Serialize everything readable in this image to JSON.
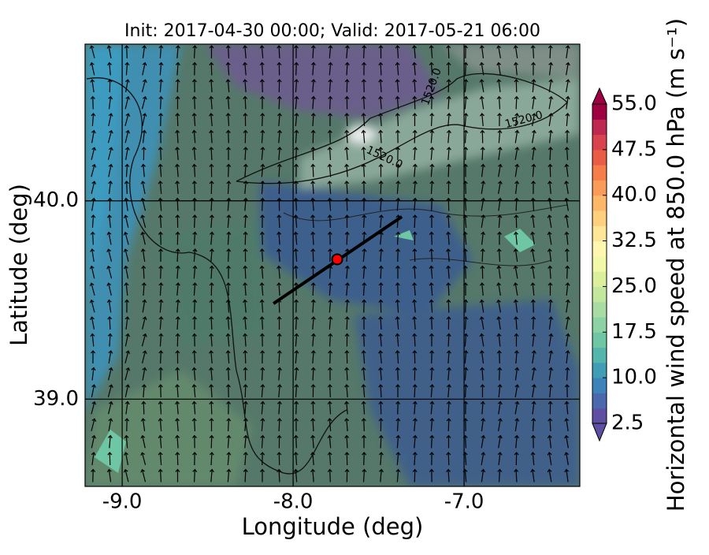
{
  "chart_data": {
    "type": "map",
    "title": "Init: 2017-04-30 00:00; Valid: 2017-05-21 06:00",
    "x_label": "Longitude (deg)",
    "y_label": "Latitude (deg)",
    "xlim": [
      -9.217,
      -6.323
    ],
    "ylim": [
      38.56,
      40.79
    ],
    "xticks": [
      {
        "value": -9,
        "label": "-9.0"
      },
      {
        "value": -8,
        "label": "-8.0"
      },
      {
        "value": -7,
        "label": "-7.0"
      }
    ],
    "yticks": [
      {
        "value": 39,
        "label": "39.0"
      },
      {
        "value": 40,
        "label": "40.0"
      }
    ],
    "grid": true,
    "contour_labels": [
      "1520.0",
      "1520.0",
      "1520.0"
    ],
    "cross_section": {
      "start": [
        -8.115,
        39.482
      ],
      "end": [
        -7.364,
        39.92
      ],
      "center": [
        -7.742,
        39.705
      ],
      "color": "#ff0000"
    },
    "colorbar": {
      "label": "Horizontal wind speed at 850.0 hPa (m s⁻¹)",
      "range": [
        2.5,
        55
      ],
      "ticks": [
        {
          "value": 2.5,
          "label": "2.5"
        },
        {
          "value": 10,
          "label": "10.0"
        },
        {
          "value": 17.5,
          "label": "17.5"
        },
        {
          "value": 25,
          "label": "25.0"
        },
        {
          "value": 32.5,
          "label": "32.5"
        },
        {
          "value": 40,
          "label": "40.0"
        },
        {
          "value": 47.5,
          "label": "47.5"
        },
        {
          "value": 55,
          "label": "55.0"
        }
      ],
      "colors": [
        "#5e4fa2",
        "#4a68ad",
        "#3b83b9",
        "#3f9db5",
        "#53b6ad",
        "#6ec6a4",
        "#8cd2a4",
        "#a8dca2",
        "#c4e79e",
        "#dcf09b",
        "#f1f9a8",
        "#fff6b0",
        "#fee597",
        "#fed07e",
        "#fdb768",
        "#fa9b58",
        "#f57d4a",
        "#e95d46",
        "#d8434e",
        "#bf2950",
        "#9e0142"
      ]
    }
  }
}
